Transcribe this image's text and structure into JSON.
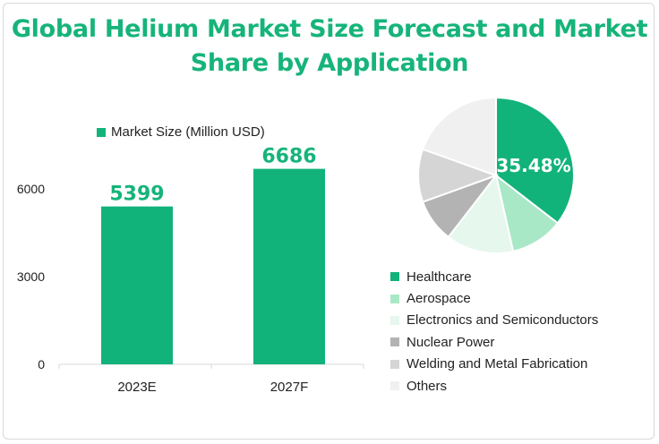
{
  "title_line1": "Global Helium Market Size Forecast and Market",
  "title_line2": "Share by Application",
  "colors": {
    "accent": "#16b47a",
    "bar": "#12b37b"
  },
  "chart_data": [
    {
      "type": "bar",
      "legend": "Market Size (Million USD)",
      "categories": [
        "2023E",
        "2027F"
      ],
      "values": [
        5399,
        6686
      ],
      "data_labels": [
        "5399",
        "6686"
      ],
      "ylim": [
        0,
        9000
      ],
      "yticks": [
        "0",
        "3000",
        "6000"
      ],
      "grid": false
    },
    {
      "type": "pie",
      "slices": [
        {
          "name": "Healthcare",
          "value": 35.48,
          "color": "#12b37b"
        },
        {
          "name": "Aerospace",
          "value": 11,
          "color": "#a9e8c6"
        },
        {
          "name": "Electronics and Semiconductors",
          "value": 14,
          "color": "#e6f7ee"
        },
        {
          "name": "Nuclear Power",
          "value": 9,
          "color": "#b3b3b3"
        },
        {
          "name": "Welding and Metal Fabrication",
          "value": 11,
          "color": "#d5d5d5"
        },
        {
          "name": "Others",
          "value": 19.52,
          "color": "#f0f0f0"
        }
      ],
      "data_label": "35.48%",
      "legend_position": "bottom"
    }
  ]
}
